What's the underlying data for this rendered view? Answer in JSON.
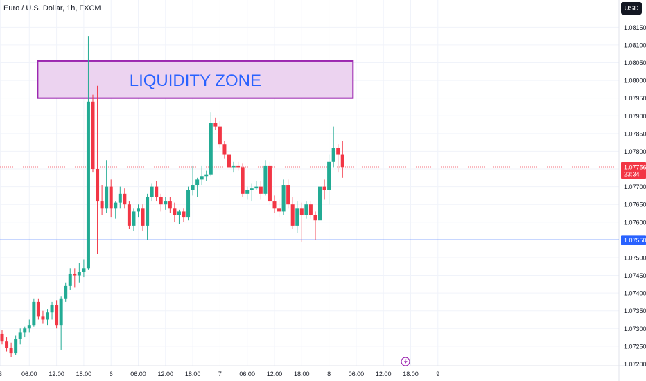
{
  "header": {
    "symbol_title": "Euro / U.S. Dollar, 1h, FXCM",
    "currency_button": "USD"
  },
  "colors": {
    "up": "#22ab94",
    "down": "#f23645",
    "zone_fill": "#ecd3f0",
    "zone_border": "#9c27b0",
    "zone_text": "#2962ff",
    "support_line": "#2962ff",
    "current_price_line": "#f23645"
  },
  "chart_data": {
    "type": "candlestick",
    "symbol": "Euro / U.S. Dollar",
    "interval": "1h",
    "source": "FXCM",
    "y_axis": {
      "range": [
        1.07195,
        1.0818
      ],
      "ticks": [
        "1.08150",
        "1.08100",
        "1.08050",
        "1.08000",
        "1.07950",
        "1.07900",
        "1.07850",
        "1.07800",
        "1.07750",
        "1.07700",
        "1.07650",
        "1.07600",
        "1.07550",
        "1.07500",
        "1.07450",
        "1.07400",
        "1.07350",
        "1.07300",
        "1.07250",
        "1.07200"
      ]
    },
    "x_axis": {
      "ticks": [
        {
          "label": "3",
          "bar": -0.4
        },
        {
          "label": "06:00",
          "bar": 6
        },
        {
          "label": "12:00",
          "bar": 12
        },
        {
          "label": "18:00",
          "bar": 18
        },
        {
          "label": "6",
          "bar": 24
        },
        {
          "label": "06:00",
          "bar": 30
        },
        {
          "label": "12:00",
          "bar": 36
        },
        {
          "label": "18:00",
          "bar": 42
        },
        {
          "label": "7",
          "bar": 48
        },
        {
          "label": "06:00",
          "bar": 54
        },
        {
          "label": "12:00",
          "bar": 60
        },
        {
          "label": "18:00",
          "bar": 66
        },
        {
          "label": "8",
          "bar": 72
        },
        {
          "label": "06:00",
          "bar": 78
        },
        {
          "label": "12:00",
          "bar": 84
        },
        {
          "label": "18:00",
          "bar": 90
        },
        {
          "label": "9",
          "bar": 96
        }
      ],
      "bar_count": 100
    },
    "candles": [
      [
        1.07285,
        1.07295,
        1.07255,
        1.07265
      ],
      [
        1.07265,
        1.07275,
        1.07235,
        1.07245
      ],
      [
        1.07245,
        1.0726,
        1.0722,
        1.0723
      ],
      [
        1.0723,
        1.0728,
        1.07225,
        1.0727
      ],
      [
        1.0727,
        1.073,
        1.07255,
        1.0729
      ],
      [
        1.0729,
        1.07305,
        1.07275,
        1.073
      ],
      [
        1.073,
        1.07325,
        1.0729,
        1.0731
      ],
      [
        1.0731,
        1.07385,
        1.07305,
        1.07375
      ],
      [
        1.07375,
        1.07385,
        1.07325,
        1.07335
      ],
      [
        1.07335,
        1.0735,
        1.07315,
        1.07325
      ],
      [
        1.07325,
        1.07355,
        1.0731,
        1.07345
      ],
      [
        1.07345,
        1.07375,
        1.07325,
        1.07365
      ],
      [
        1.07365,
        1.0738,
        1.073,
        1.0731
      ],
      [
        1.0731,
        1.0739,
        1.0724,
        1.07385
      ],
      [
        1.07385,
        1.0743,
        1.07375,
        1.0742
      ],
      [
        1.0742,
        1.0747,
        1.0741,
        1.07455
      ],
      [
        1.07455,
        1.0747,
        1.07415,
        1.0745
      ],
      [
        1.0745,
        1.07485,
        1.0743,
        1.0746
      ],
      [
        1.0746,
        1.07495,
        1.07445,
        1.0747
      ],
      [
        1.0747,
        1.08125,
        1.07465,
        1.0794
      ],
      [
        1.0794,
        1.0796,
        1.0774,
        1.0775
      ],
      [
        1.0775,
        1.07985,
        1.0751,
        1.0766
      ],
      [
        1.0766,
        1.07705,
        1.0762,
        1.0764
      ],
      [
        1.0764,
        1.07775,
        1.07625,
        1.077
      ],
      [
        1.077,
        1.0772,
        1.07615,
        1.0764
      ],
      [
        1.0764,
        1.0766,
        1.0761,
        1.07655
      ],
      [
        1.07655,
        1.077,
        1.0764,
        1.0768
      ],
      [
        1.0768,
        1.07695,
        1.0764,
        1.0765
      ],
      [
        1.0765,
        1.0766,
        1.0758,
        1.0759
      ],
      [
        1.0759,
        1.0764,
        1.07575,
        1.0763
      ],
      [
        1.0763,
        1.0765,
        1.07615,
        1.0764
      ],
      [
        1.0764,
        1.0765,
        1.07575,
        1.0759
      ],
      [
        1.0759,
        1.0768,
        1.0755,
        1.0767
      ],
      [
        1.0767,
        1.0771,
        1.0766,
        1.077
      ],
      [
        1.077,
        1.07715,
        1.0766,
        1.0767
      ],
      [
        1.0767,
        1.0768,
        1.0763,
        1.0765
      ],
      [
        1.0765,
        1.0767,
        1.07635,
        1.0766
      ],
      [
        1.0766,
        1.0767,
        1.07625,
        1.0764
      ],
      [
        1.0764,
        1.07655,
        1.076,
        1.0762
      ],
      [
        1.0762,
        1.07635,
        1.07595,
        1.0763
      ],
      [
        1.0763,
        1.0764,
        1.076,
        1.07615
      ],
      [
        1.07615,
        1.077,
        1.07605,
        1.0769
      ],
      [
        1.0769,
        1.0776,
        1.07675,
        1.07705
      ],
      [
        1.07705,
        1.07725,
        1.0767,
        1.0772
      ],
      [
        1.0772,
        1.0776,
        1.07705,
        1.0773
      ],
      [
        1.0773,
        1.07745,
        1.07715,
        1.07735
      ],
      [
        1.07735,
        1.0791,
        1.0773,
        1.0788
      ],
      [
        1.0788,
        1.07895,
        1.0786,
        1.0787
      ],
      [
        1.0787,
        1.07885,
        1.0781,
        1.0782
      ],
      [
        1.0782,
        1.0783,
        1.0778,
        1.0779
      ],
      [
        1.0779,
        1.07815,
        1.07745,
        1.07755
      ],
      [
        1.07755,
        1.0777,
        1.0774,
        1.0776
      ],
      [
        1.0776,
        1.0777,
        1.07745,
        1.07755
      ],
      [
        1.07755,
        1.07765,
        1.0767,
        1.0768
      ],
      [
        1.0768,
        1.077,
        1.07665,
        1.0769
      ],
      [
        1.0769,
        1.0771,
        1.0766,
        1.07695
      ],
      [
        1.07695,
        1.07715,
        1.0769,
        1.077
      ],
      [
        1.077,
        1.07715,
        1.07665,
        1.0768
      ],
      [
        1.0768,
        1.07775,
        1.07675,
        1.0776
      ],
      [
        1.0776,
        1.0777,
        1.0765,
        1.0766
      ],
      [
        1.0766,
        1.07675,
        1.07625,
        1.0764
      ],
      [
        1.0764,
        1.07665,
        1.07615,
        1.0763
      ],
      [
        1.0763,
        1.0772,
        1.0762,
        1.07705
      ],
      [
        1.07705,
        1.0772,
        1.0764,
        1.0765
      ],
      [
        1.0765,
        1.0767,
        1.0758,
        1.0759
      ],
      [
        1.0759,
        1.0766,
        1.0757,
        1.0764
      ],
      [
        1.0764,
        1.07655,
        1.07545,
        1.0762
      ],
      [
        1.0762,
        1.0766,
        1.0761,
        1.0765
      ],
      [
        1.0765,
        1.0766,
        1.0761,
        1.0762
      ],
      [
        1.0762,
        1.0763,
        1.0755,
        1.07605
      ],
      [
        1.07605,
        1.07715,
        1.07585,
        1.077
      ],
      [
        1.077,
        1.0772,
        1.07665,
        1.0769
      ],
      [
        1.0769,
        1.0779,
        1.0765,
        1.0777
      ],
      [
        1.0777,
        1.0787,
        1.07755,
        1.0781
      ],
      [
        1.0781,
        1.0782,
        1.0774,
        1.0779
      ],
      [
        1.0779,
        1.0783,
        1.07725,
        1.07756
      ]
    ],
    "annotations": {
      "zone": {
        "label": "LIQUIDITY ZONE",
        "top": 1.08055,
        "bottom": 1.0795,
        "bar_start": 8,
        "bar_end": 77.3
      },
      "support_line": {
        "price": 1.0755,
        "label": "1.07550"
      },
      "current_price": {
        "price": 1.07756,
        "label": "1.07756",
        "countdown": "23:34"
      }
    }
  }
}
